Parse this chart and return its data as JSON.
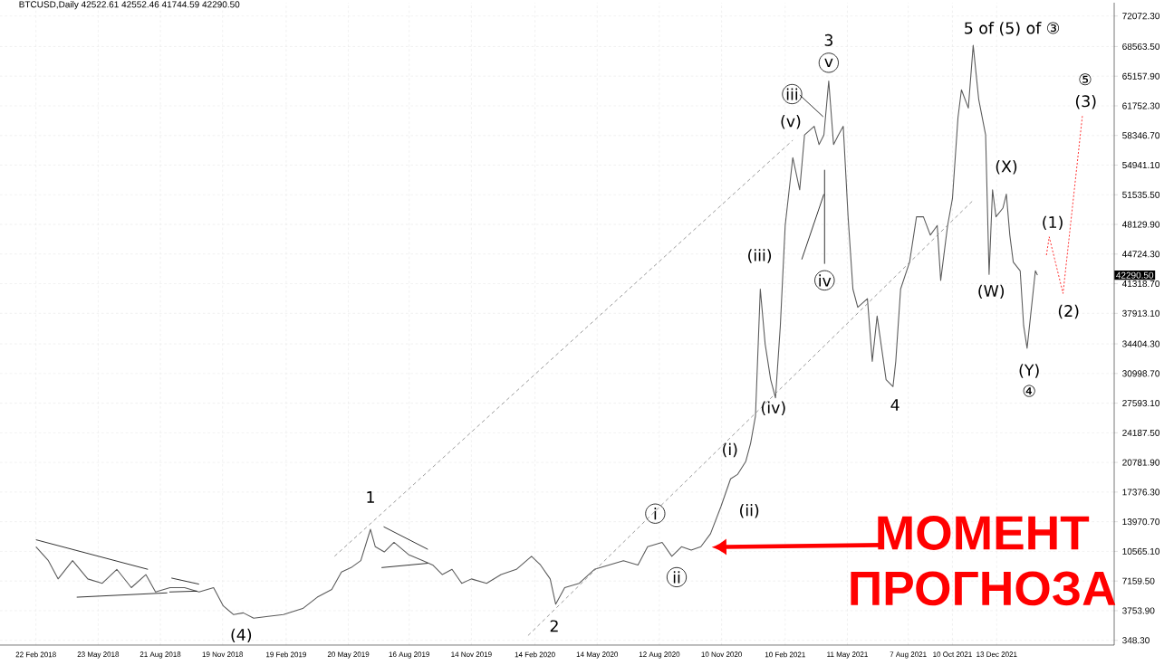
{
  "chart_data": {
    "type": "line",
    "title": "BTCUSD,Daily  42522.61 42552.46 41744.59 42290.50",
    "marker": "none",
    "grid": true,
    "xlim": [
      "2018-01-01",
      "2022-06-01"
    ],
    "ylim": [
      -200,
      73600
    ],
    "xticks": [
      {
        "value": "2018-02-22",
        "label": "22 Feb 2018"
      },
      {
        "value": "2018-05-23",
        "label": "23 May 2018"
      },
      {
        "value": "2018-08-21",
        "label": "21 Aug 2018"
      },
      {
        "value": "2018-11-19",
        "label": "19 Nov 2018"
      },
      {
        "value": "2019-02-19",
        "label": "19 Feb 2019"
      },
      {
        "value": "2019-05-20",
        "label": "20 May 2019"
      },
      {
        "value": "2019-08-16",
        "label": "16 Aug 2019"
      },
      {
        "value": "2019-11-14",
        "label": "14 Nov 2019"
      },
      {
        "value": "2020-02-14",
        "label": "14 Feb 2020"
      },
      {
        "value": "2020-05-14",
        "label": "14 May 2020"
      },
      {
        "value": "2020-08-12",
        "label": "12 Aug 2020"
      },
      {
        "value": "2020-11-10",
        "label": "10 Nov 2020"
      },
      {
        "value": "2021-02-10",
        "label": "10 Feb 2021"
      },
      {
        "value": "2021-05-11",
        "label": "11 May 2021"
      },
      {
        "value": "2021-08-07",
        "label": "7 Aug 2021"
      },
      {
        "value": "2021-10-10",
        "label": "10 Oct 2021"
      },
      {
        "value": "2021-12-13",
        "label": "13 Dec 2021"
      }
    ],
    "yticks": [
      {
        "value": 348.3,
        "label": "348.30"
      },
      {
        "value": 3753.9,
        "label": "3753.90"
      },
      {
        "value": 7159.5,
        "label": "7159.50"
      },
      {
        "value": 10565.1,
        "label": "10565.10"
      },
      {
        "value": 13970.7,
        "label": "13970.70"
      },
      {
        "value": 17376.3,
        "label": "17376.30"
      },
      {
        "value": 20781.9,
        "label": "20781.90"
      },
      {
        "value": 24187.5,
        "label": "24187.50"
      },
      {
        "value": 27593.1,
        "label": "27593.10"
      },
      {
        "value": 30998.7,
        "label": "30998.70"
      },
      {
        "value": 34404.3,
        "label": "34404.30"
      },
      {
        "value": 37913.1,
        "label": "37913.10"
      },
      {
        "value": 41318.7,
        "label": "41318.70"
      },
      {
        "value": 44724.3,
        "label": "44724.30"
      },
      {
        "value": 48129.9,
        "label": "48129.90"
      },
      {
        "value": 51535.5,
        "label": "51535.50"
      },
      {
        "value": 54941.1,
        "label": "54941.10"
      },
      {
        "value": 58346.7,
        "label": "58346.70"
      },
      {
        "value": 61752.3,
        "label": "61752.30"
      },
      {
        "value": 65157.9,
        "label": "65157.90"
      },
      {
        "value": 68563.5,
        "label": "68563.50"
      },
      {
        "value": 72072.3,
        "label": "72072.30"
      }
    ],
    "series": [
      {
        "color": "#5a5a5a",
        "x": [
          "2018-02-22",
          "2018-03-12",
          "2018-03-26",
          "2018-04-16",
          "2018-05-08",
          "2018-05-29",
          "2018-06-19",
          "2018-07-10",
          "2018-07-31",
          "2018-08-14",
          "2018-09-04",
          "2018-09-25",
          "2018-10-16",
          "2018-11-06",
          "2018-11-20",
          "2018-12-05",
          "2018-12-19",
          "2019-01-03",
          "2019-01-24",
          "2019-02-15",
          "2019-03-15",
          "2019-04-05",
          "2019-04-26",
          "2019-05-10",
          "2019-05-24",
          "2019-06-07",
          "2019-06-21",
          "2019-06-28",
          "2019-07-11",
          "2019-07-25",
          "2019-08-15",
          "2019-09-05",
          "2019-09-19",
          "2019-10-03",
          "2019-10-17",
          "2019-10-31",
          "2019-11-14",
          "2019-12-06",
          "2019-12-27",
          "2020-01-18",
          "2020-02-09",
          "2020-02-22",
          "2020-03-07",
          "2020-03-15",
          "2020-03-28",
          "2020-04-18",
          "2020-05-10",
          "2020-05-31",
          "2020-06-21",
          "2020-07-12",
          "2020-07-26",
          "2020-08-16",
          "2020-08-30",
          "2020-09-13",
          "2020-09-27",
          "2020-10-11",
          "2020-10-25",
          "2020-11-09",
          "2020-11-23",
          "2020-12-03",
          "2020-12-15",
          "2020-12-22",
          "2020-12-29",
          "2021-01-05",
          "2021-01-12",
          "2021-01-20",
          "2021-01-27",
          "2021-02-03",
          "2021-02-10",
          "2021-02-21",
          "2021-03-03",
          "2021-03-10",
          "2021-03-24",
          "2021-03-31",
          "2021-04-07",
          "2021-04-14",
          "2021-04-21",
          "2021-04-28",
          "2021-05-05",
          "2021-05-12",
          "2021-05-19",
          "2021-05-26",
          "2021-06-09",
          "2021-06-16",
          "2021-06-23",
          "2021-07-06",
          "2021-07-16",
          "2021-07-20",
          "2021-07-27",
          "2021-08-09",
          "2021-08-19",
          "2021-08-29",
          "2021-09-08",
          "2021-09-18",
          "2021-09-23",
          "2021-10-03",
          "2021-10-10",
          "2021-10-18",
          "2021-10-23",
          "2021-11-02",
          "2021-11-09",
          "2021-11-17",
          "2021-11-27",
          "2021-12-02",
          "2021-12-07",
          "2021-12-12",
          "2021-12-22",
          "2021-12-27",
          "2022-01-01",
          "2022-01-06",
          "2022-01-16",
          "2022-01-21",
          "2022-01-26",
          "2022-01-31",
          "2022-02-07",
          "2022-02-10"
        ],
        "values": [
          11100,
          9500,
          7400,
          9500,
          7400,
          6900,
          8500,
          6400,
          7900,
          5900,
          6400,
          6400,
          5900,
          6400,
          4300,
          3300,
          3500,
          2900,
          3100,
          3300,
          4000,
          5300,
          6200,
          8200,
          8700,
          9500,
          13100,
          11100,
          10500,
          11600,
          10200,
          9500,
          9000,
          7900,
          8500,
          6900,
          7400,
          6900,
          7900,
          8500,
          10000,
          9000,
          7400,
          4500,
          6400,
          6900,
          8500,
          9000,
          9500,
          9000,
          11100,
          11600,
          10000,
          11100,
          10700,
          11100,
          12600,
          15700,
          18900,
          19400,
          20900,
          23000,
          26100,
          40700,
          34400,
          30300,
          28200,
          36500,
          48000,
          55800,
          52100,
          58400,
          59400,
          57300,
          58400,
          64600,
          57300,
          58400,
          59400,
          49000,
          40700,
          38600,
          39600,
          32400,
          37600,
          30300,
          29500,
          32400,
          40700,
          43800,
          49000,
          49000,
          46900,
          48000,
          41700,
          48000,
          51100,
          60400,
          63600,
          61500,
          68700,
          62500,
          58400,
          42400,
          52100,
          49000,
          50000,
          51600,
          46900,
          43800,
          42800,
          36500,
          33900,
          37600,
          42800,
          42300
        ]
      },
      {
        "color": "#808080",
        "line_style": "dashed",
        "x": [
          "2019-04-30",
          "2021-02-21"
        ],
        "values": [
          10000,
          57800
        ]
      },
      {
        "color": "#808080",
        "line_style": "dashed",
        "x": [
          "2020-02-04",
          "2021-11-09"
        ],
        "values": [
          900,
          50900
        ]
      },
      {
        "color": "#000000",
        "x": [
          "2018-02-22",
          "2018-08-03"
        ],
        "values": [
          11900,
          8500
        ]
      },
      {
        "color": "#000000",
        "x": [
          "2018-04-22",
          "2018-08-31"
        ],
        "values": [
          5300,
          5800
        ]
      },
      {
        "color": "#000000",
        "x": [
          "2018-09-03",
          "2018-10-13"
        ],
        "values": [
          5900,
          6000
        ]
      },
      {
        "color": "#000000",
        "x": [
          "2018-09-06",
          "2018-10-16"
        ],
        "values": [
          7500,
          6800
        ]
      },
      {
        "color": "#000000",
        "x": [
          "2019-07-10",
          "2019-09-12"
        ],
        "values": [
          13400,
          10800
        ]
      },
      {
        "color": "#000000",
        "x": [
          "2019-07-07",
          "2019-09-12"
        ],
        "values": [
          8700,
          9200
        ]
      },
      {
        "color": "#000000",
        "x": [
          "2021-03-03",
          "2021-04-06"
        ],
        "values": [
          63000,
          60500
        ]
      },
      {
        "color": "#000000",
        "x": [
          "2021-04-08",
          "2021-04-08"
        ],
        "values": [
          54400,
          43600
        ]
      },
      {
        "color": "#000000",
        "x": [
          "2021-03-06",
          "2021-04-07"
        ],
        "values": [
          44100,
          51600
        ]
      },
      {
        "color": "#ff0000",
        "line_style": "dotted",
        "x": [
          "2022-02-23",
          "2022-02-27",
          "2022-03-19",
          "2022-04-16"
        ],
        "values": [
          44600,
          46700,
          40200,
          60600
        ]
      }
    ],
    "annotations": [
      "1",
      "(4)",
      "2",
      "i",
      "ii",
      "(i)",
      "(ii)",
      "(iv)",
      "(iii)",
      "(v)",
      "iii",
      "v",
      "3",
      "iv",
      "4",
      "5 of (5) of ③",
      "(X)",
      "(W)",
      "(Y)",
      "④",
      "(1)",
      "(2)",
      "⑤",
      "(3)",
      "42290.50",
      "МОМЕНТ ПРОГНОЗА"
    ]
  }
}
